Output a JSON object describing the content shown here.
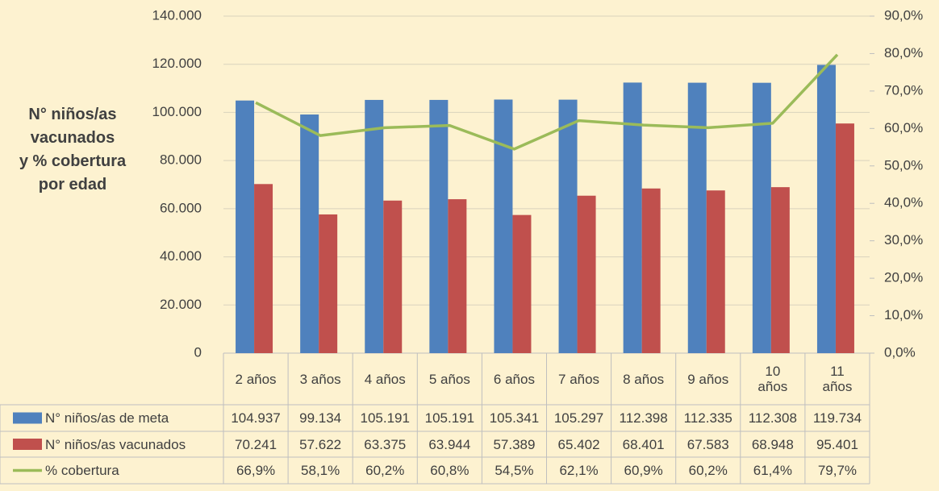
{
  "chart_data": {
    "type": "bar",
    "y_label": [
      "N° niños/as",
      "vacunados",
      "y % cobertura",
      "por edad"
    ],
    "categories": [
      "2 años",
      "3 años",
      "4 años",
      "5 años",
      "6 años",
      "7 años",
      "8 años",
      "9 años",
      "10 años",
      "11 años"
    ],
    "series": [
      {
        "name": "N° niños/as de meta",
        "color": "#4f81bd",
        "type": "bar",
        "values": [
          104937,
          99134,
          105191,
          105191,
          105341,
          105297,
          112398,
          112335,
          112308,
          119734
        ],
        "value_labels": [
          "104.937",
          "99.134",
          "105.191",
          "105.191",
          "105.341",
          "105.297",
          "112.398",
          "112.335",
          "112.308",
          "119.734"
        ]
      },
      {
        "name": "N° niños/as vacunados",
        "color": "#c0504d",
        "type": "bar",
        "values": [
          70241,
          57622,
          63375,
          63944,
          57389,
          65402,
          68401,
          67583,
          68948,
          95401
        ],
        "value_labels": [
          "70.241",
          "57.622",
          "63.375",
          "63.944",
          "57.389",
          "65.402",
          "68.401",
          "67.583",
          "68.948",
          "95.401"
        ]
      },
      {
        "name": "% cobertura",
        "color": "#9bbb59",
        "type": "line",
        "axis": "y2",
        "values": [
          66.9,
          58.1,
          60.2,
          60.8,
          54.5,
          62.1,
          60.9,
          60.2,
          61.4,
          79.7
        ],
        "value_labels": [
          "66,9%",
          "58,1%",
          "60,2%",
          "60,8%",
          "54,5%",
          "62,1%",
          "60,9%",
          "60,2%",
          "61,4%",
          "79,7%"
        ]
      }
    ],
    "ylim": [
      0,
      140000
    ],
    "yticks": [
      0,
      {
        "value": 20000,
        "label": "20.000"
      },
      {
        "value": 40000,
        "label": "40.000"
      },
      {
        "value": 60000,
        "label": "60.000"
      },
      {
        "value": 80000,
        "label": "80.000"
      },
      {
        "value": 100000,
        "label": "100.000"
      },
      {
        "value": 120000,
        "label": "120.000"
      },
      {
        "value": 140000,
        "label": "140.000"
      }
    ],
    "y2lim": [
      0,
      90
    ],
    "y2ticks": [
      {
        "value": 0,
        "label": "0,0%"
      },
      {
        "value": 10,
        "label": "10,0%"
      },
      {
        "value": 20,
        "label": "20,0%"
      },
      {
        "value": 30,
        "label": "30,0%"
      },
      {
        "value": 40,
        "label": "40,0%"
      },
      {
        "value": 50,
        "label": "50,0%"
      },
      {
        "value": 60,
        "label": "60,0%"
      },
      {
        "value": 70,
        "label": "70,0%"
      },
      {
        "value": 80,
        "label": "80,0%"
      },
      {
        "value": 90,
        "label": "90,0%"
      }
    ],
    "grid": true
  }
}
